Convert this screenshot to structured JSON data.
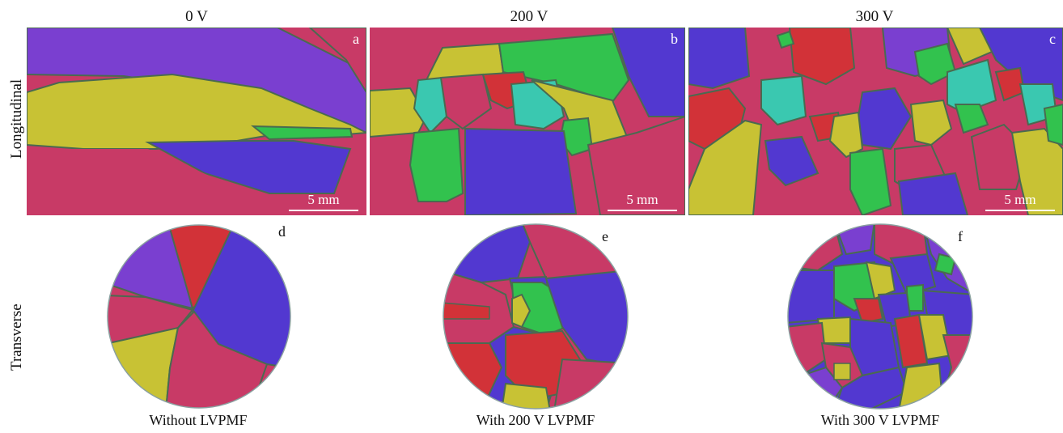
{
  "columns": [
    {
      "title": "0 V",
      "long_letter": "a",
      "trans_letter": "d",
      "caption": "Without LVPMF"
    },
    {
      "title": "200 V",
      "long_letter": "b",
      "trans_letter": "e",
      "caption": "With 200 V LVPMF"
    },
    {
      "title": "300 V",
      "long_letter": "c",
      "trans_letter": "f",
      "caption": "With 300 V LVPMF"
    }
  ],
  "rows": {
    "longitudinal": "Longitudinal",
    "transverse": "Transverse"
  },
  "scale_bar": "5 mm",
  "colors": {
    "magenta": "#c83a66",
    "blue": "#5238d0",
    "purple": "#7a3fd0",
    "yellow": "#c8c234",
    "green": "#32c24e",
    "red": "#d23238",
    "cyan": "#3ac8b0",
    "boundary": "#4a6a50"
  }
}
